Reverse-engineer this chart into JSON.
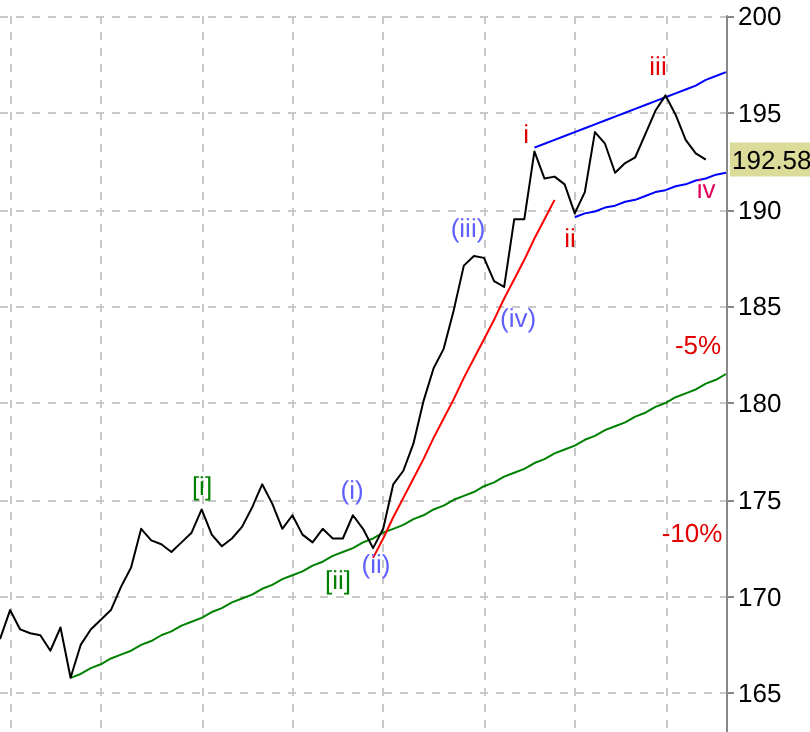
{
  "chart_data": {
    "type": "line",
    "categories": [
      null,
      null,
      null,
      null,
      null,
      null,
      null,
      null,
      null,
      null,
      null,
      null,
      null,
      null,
      null,
      null,
      null,
      null,
      null,
      null,
      null,
      null,
      null,
      null,
      null,
      null,
      null,
      null,
      null,
      null,
      null,
      null,
      null,
      null,
      null,
      null,
      null,
      null,
      null,
      null,
      null,
      null,
      null,
      null,
      null,
      null,
      null,
      null,
      null,
      null,
      null,
      null,
      null,
      null,
      null,
      null,
      null,
      null,
      null,
      null,
      null,
      null,
      null,
      null,
      null,
      null,
      null,
      null,
      null,
      null,
      null,
      null,
      null
    ],
    "ylim": [
      163,
      200
    ],
    "yticks": [
      165,
      170,
      175,
      180,
      185,
      190,
      195,
      200
    ],
    "tick_labels": "y",
    "grid": true,
    "line_style": "solid",
    "series": [
      {
        "color": "#000000",
        "values": [
          167.8,
          169.3,
          168.3,
          168.1,
          168.0,
          167.2,
          168.4,
          165.8,
          167.5,
          168.3,
          168.8,
          169.3,
          170.5,
          171.5,
          173.5,
          172.9,
          172.7,
          172.3,
          172.8,
          173.3,
          174.5,
          173.2,
          172.6,
          173.0,
          173.6,
          174.6,
          175.8,
          174.8,
          173.5,
          174.2,
          173.2,
          172.8,
          173.5,
          173.0,
          173.0,
          174.2,
          173.5,
          172.5,
          173.5,
          175.8,
          176.5,
          177.9,
          180.1,
          181.8,
          182.8,
          184.8,
          187.1,
          187.6,
          187.5,
          186.3,
          186.0,
          189.5,
          189.5,
          193.0,
          191.6,
          191.7,
          191.3,
          189.8,
          190.9,
          194.0,
          193.4,
          191.9,
          192.4,
          192.7,
          193.9,
          195.1,
          195.9,
          194.9,
          193.6,
          192.9,
          192.58,
          null,
          null
        ]
      },
      {
        "type": "line",
        "color": "#008000",
        "values": [
          null,
          null,
          null,
          null,
          null,
          null,
          null,
          165.8,
          166.0,
          166.3,
          166.5,
          166.8,
          167.0,
          167.2,
          167.5,
          167.7,
          168.0,
          168.2,
          168.5,
          168.7,
          168.9,
          169.2,
          169.4,
          169.7,
          169.9,
          170.1,
          170.4,
          170.6,
          170.9,
          171.1,
          171.3,
          171.6,
          171.8,
          172.1,
          172.3,
          172.5,
          172.8,
          173.0,
          173.3,
          173.5,
          173.7,
          174.0,
          174.2,
          174.5,
          174.7,
          175.0,
          175.2,
          175.4,
          175.7,
          175.9,
          176.2,
          176.4,
          176.6,
          176.9,
          177.1,
          177.4,
          177.6,
          177.8,
          178.1,
          178.3,
          178.6,
          178.8,
          179.0,
          179.3,
          179.5,
          179.8,
          180.0,
          180.3,
          180.5,
          180.7,
          181.0,
          181.2,
          181.5
        ]
      },
      {
        "type": "line",
        "color": "#ff0000",
        "values": [
          null,
          null,
          null,
          null,
          null,
          null,
          null,
          null,
          null,
          null,
          null,
          null,
          null,
          null,
          null,
          null,
          null,
          null,
          null,
          null,
          null,
          null,
          null,
          null,
          null,
          null,
          null,
          null,
          null,
          null,
          null,
          null,
          null,
          null,
          null,
          null,
          null,
          172.0,
          173.0,
          174.1,
          175.1,
          176.1,
          177.1,
          178.2,
          179.2,
          180.2,
          181.3,
          182.3,
          183.3,
          184.3,
          185.4,
          186.4,
          187.4,
          188.5,
          189.5,
          190.5,
          null,
          null,
          null,
          null,
          null,
          null,
          null,
          null,
          null,
          null,
          null,
          null,
          null,
          null,
          null,
          null,
          null
        ]
      },
      {
        "type": "line",
        "color": "#0000ff",
        "values": [
          null,
          null,
          null,
          null,
          null,
          null,
          null,
          null,
          null,
          null,
          null,
          null,
          null,
          null,
          null,
          null,
          null,
          null,
          null,
          null,
          null,
          null,
          null,
          null,
          null,
          null,
          null,
          null,
          null,
          null,
          null,
          null,
          null,
          null,
          null,
          null,
          null,
          null,
          null,
          null,
          null,
          null,
          null,
          null,
          null,
          null,
          null,
          null,
          null,
          null,
          null,
          null,
          null,
          193.2,
          193.4,
          193.6,
          193.8,
          194.0,
          194.2,
          194.4,
          194.6,
          194.8,
          195.0,
          195.2,
          195.4,
          195.6,
          195.8,
          196.0,
          196.2,
          196.4,
          196.7,
          196.9,
          197.1
        ]
      },
      {
        "type": "line",
        "color": "#0000ff",
        "values": [
          null,
          null,
          null,
          null,
          null,
          null,
          null,
          null,
          null,
          null,
          null,
          null,
          null,
          null,
          null,
          null,
          null,
          null,
          null,
          null,
          null,
          null,
          null,
          null,
          null,
          null,
          null,
          null,
          null,
          null,
          null,
          null,
          null,
          null,
          null,
          null,
          null,
          null,
          null,
          null,
          null,
          null,
          null,
          null,
          null,
          null,
          null,
          null,
          null,
          null,
          null,
          null,
          null,
          null,
          null,
          null,
          null,
          189.6,
          189.8,
          189.9,
          190.1,
          190.2,
          190.4,
          190.5,
          190.7,
          190.9,
          191.0,
          191.2,
          191.3,
          191.5,
          191.6,
          191.8,
          191.9
        ]
      }
    ],
    "annotations": [
      "[i]",
      "[ii]",
      "(i)",
      "(ii)",
      "(iii)",
      "(iv)",
      "i",
      "ii",
      "iii",
      "iv",
      "-5%",
      "-10%",
      "192.58"
    ]
  }
}
